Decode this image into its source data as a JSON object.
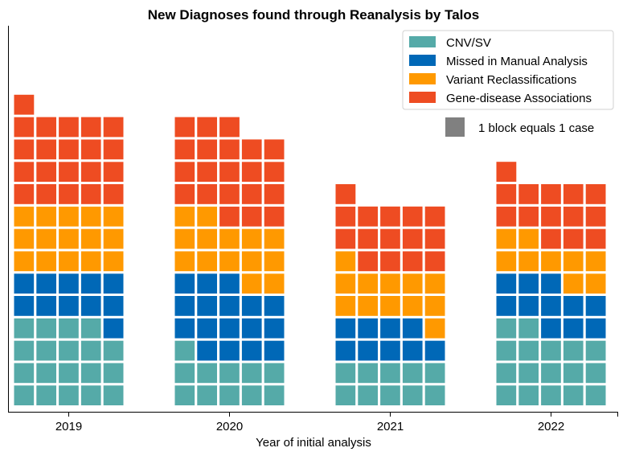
{
  "chart_data": {
    "type": "waffle",
    "title": "New Diagnoses found through Reanalysis by Talos",
    "xlabel": "Year of initial analysis",
    "ylabel": "",
    "categories": [
      "2019",
      "2020",
      "2021",
      "2022"
    ],
    "series": [
      {
        "name": "CNV/SV",
        "color": "#55aaa8",
        "values": [
          19,
          11,
          10,
          17
        ]
      },
      {
        "name": "Missed in Manual Analysis",
        "color": "#0068b7",
        "values": [
          11,
          17,
          9,
          11
        ]
      },
      {
        "name": "Variant Reclassifications",
        "color": "#ff9900",
        "values": [
          15,
          14,
          12,
          9
        ]
      },
      {
        "name": "Gene-disease Associations",
        "color": "#ee4c22",
        "values": [
          21,
          21,
          15,
          14
        ]
      }
    ],
    "blocks_per_row": 5,
    "legend_position": "top-right",
    "legend_note": "1 block equals 1 case",
    "legend_note_color": "#808080",
    "grid": false
  }
}
